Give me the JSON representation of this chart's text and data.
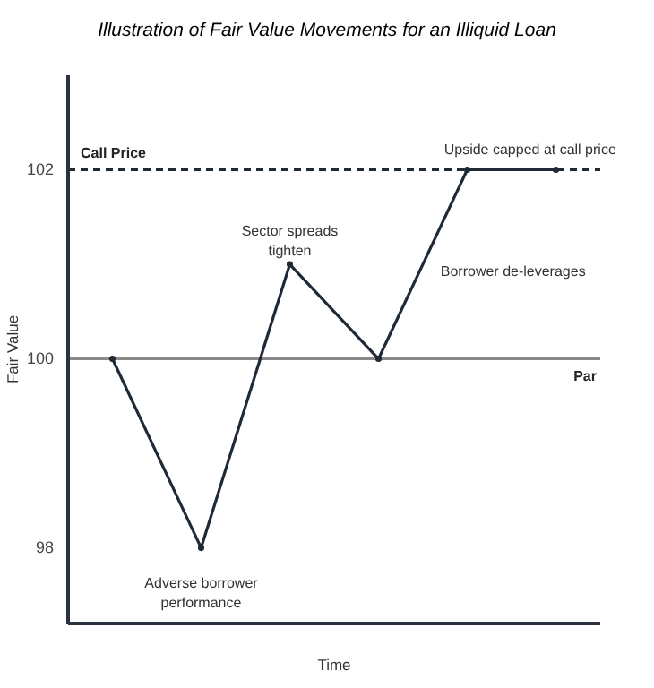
{
  "chart_data": {
    "type": "line",
    "title": "Illustration of Fair Value Movements for an Illiquid Loan",
    "xlabel": "Time",
    "ylabel": "Fair Value",
    "categories": [
      null,
      null,
      null,
      null,
      null,
      null
    ],
    "series": [
      {
        "color": "#1f2a36",
        "values": [
          100,
          98,
          101,
          100,
          102,
          102
        ]
      }
    ],
    "ylim": [
      97.2,
      103
    ],
    "yticks": [
      98,
      100,
      102
    ],
    "marker": "circle",
    "line_style": "solid",
    "grid": false,
    "ref_lines": [
      {
        "axis": "y",
        "value": 102,
        "label": "Call Price",
        "color": "#1f2a36",
        "line_style": "dashed"
      },
      {
        "axis": "y",
        "value": 100,
        "label": "Par",
        "color": "#8a8a8a",
        "line_style": "solid"
      }
    ],
    "annotations": [
      {
        "text": "Adverse borrower performance",
        "y": 98
      },
      {
        "text": "Sector spreads tighten",
        "y": 101
      },
      "Borrower de-leverages",
      "Upside capped at call price"
    ]
  }
}
